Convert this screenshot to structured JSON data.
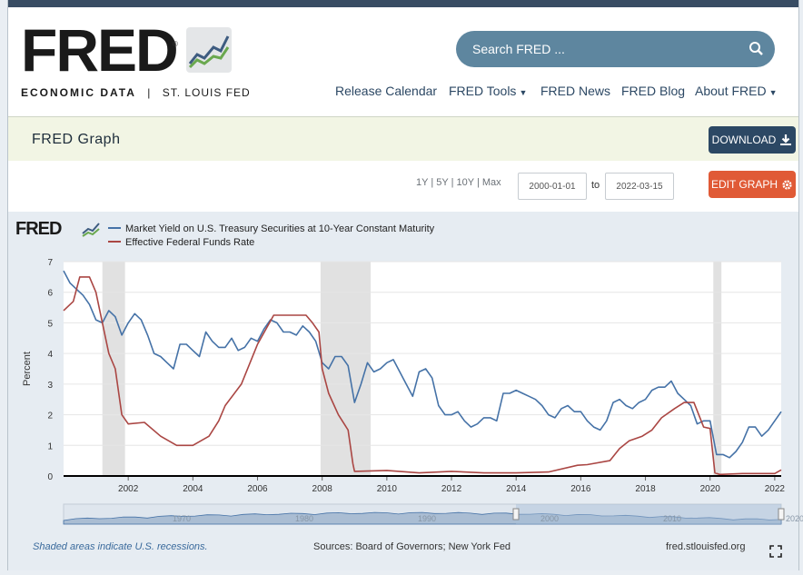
{
  "header": {
    "logo_text": "FRED",
    "logo_reg": "®",
    "tagline_bold": "ECONOMIC DATA",
    "tagline_sep": "|",
    "tagline_rest": "ST. LOUIS FED",
    "search_placeholder": "Search FRED ...",
    "nav": [
      "Release Calendar",
      "FRED Tools",
      "FRED News",
      "FRED Blog",
      "About FRED"
    ],
    "nav_chevron": "⌄"
  },
  "subheader": {
    "title": "FRED Graph",
    "download_label": "DOWNLOAD",
    "edit_label": "EDIT GRAPH"
  },
  "controls": {
    "range_1y": "1Y",
    "range_5y": "5Y",
    "range_10y": "10Y",
    "range_max": "Max",
    "sep": "|",
    "start_date": "2000-01-01",
    "to_label": "to",
    "end_date": "2022-03-15"
  },
  "footer": {
    "recession_note": "Shaded areas indicate U.S. recessions.",
    "sources": "Sources: Board of Governors; New York Fed",
    "site": "fred.stlouisfed.org"
  },
  "colors": {
    "series1": "#4572a7",
    "series2": "#aa4643",
    "recession": "#e1e1e1",
    "accent": "#2c4864"
  },
  "chart_data": {
    "type": "line",
    "title": "",
    "logo_text": "FRED",
    "ylabel": "Percent",
    "xlabel": "",
    "ylim": [
      0,
      7
    ],
    "xlim": [
      2000.0,
      2022.2
    ],
    "yticks": [
      0,
      1,
      2,
      3,
      4,
      5,
      6,
      7
    ],
    "xticks": [
      2002,
      2004,
      2006,
      2008,
      2010,
      2012,
      2014,
      2016,
      2018,
      2020,
      2022
    ],
    "navigator_ticks": [
      "1970",
      "1980",
      "1990",
      "2000",
      "2010",
      "2020"
    ],
    "recessions": [
      [
        2001.2,
        2001.9
      ],
      [
        2007.95,
        2009.5
      ],
      [
        2020.1,
        2020.35
      ]
    ],
    "series": [
      {
        "name": "Market Yield on U.S. Treasury Securities at 10-Year Constant Maturity",
        "x": [
          2000.0,
          2000.2,
          2000.4,
          2000.6,
          2000.8,
          2001.0,
          2001.2,
          2001.4,
          2001.6,
          2001.8,
          2002.0,
          2002.2,
          2002.4,
          2002.6,
          2002.8,
          2003.0,
          2003.2,
          2003.4,
          2003.6,
          2003.8,
          2004.0,
          2004.2,
          2004.4,
          2004.6,
          2004.8,
          2005.0,
          2005.2,
          2005.4,
          2005.6,
          2005.8,
          2006.0,
          2006.2,
          2006.4,
          2006.6,
          2006.8,
          2007.0,
          2007.2,
          2007.4,
          2007.6,
          2007.8,
          2008.0,
          2008.2,
          2008.4,
          2008.6,
          2008.8,
          2009.0,
          2009.2,
          2009.4,
          2009.6,
          2009.8,
          2010.0,
          2010.2,
          2010.4,
          2010.6,
          2010.8,
          2011.0,
          2011.2,
          2011.4,
          2011.6,
          2011.8,
          2012.0,
          2012.2,
          2012.4,
          2012.6,
          2012.8,
          2013.0,
          2013.2,
          2013.4,
          2013.6,
          2013.8,
          2014.0,
          2014.2,
          2014.4,
          2014.6,
          2014.8,
          2015.0,
          2015.2,
          2015.4,
          2015.6,
          2015.8,
          2016.0,
          2016.2,
          2016.4,
          2016.6,
          2016.8,
          2017.0,
          2017.2,
          2017.4,
          2017.6,
          2017.8,
          2018.0,
          2018.2,
          2018.4,
          2018.6,
          2018.8,
          2019.0,
          2019.2,
          2019.4,
          2019.6,
          2019.8,
          2020.0,
          2020.2,
          2020.4,
          2020.6,
          2020.8,
          2021.0,
          2021.2,
          2021.4,
          2021.6,
          2021.8,
          2022.0,
          2022.2
        ],
        "values": [
          6.7,
          6.3,
          6.1,
          5.9,
          5.6,
          5.1,
          5.0,
          5.4,
          5.2,
          4.6,
          5.0,
          5.3,
          5.1,
          4.6,
          4.0,
          3.9,
          3.7,
          3.5,
          4.3,
          4.3,
          4.1,
          3.9,
          4.7,
          4.4,
          4.2,
          4.2,
          4.5,
          4.1,
          4.2,
          4.5,
          4.4,
          4.8,
          5.1,
          5.0,
          4.7,
          4.7,
          4.6,
          4.9,
          4.7,
          4.4,
          3.7,
          3.5,
          3.9,
          3.9,
          3.6,
          2.4,
          3.0,
          3.7,
          3.4,
          3.5,
          3.7,
          3.8,
          3.4,
          3.0,
          2.6,
          3.4,
          3.5,
          3.2,
          2.3,
          2.0,
          2.0,
          2.1,
          1.8,
          1.6,
          1.7,
          1.9,
          1.9,
          1.8,
          2.7,
          2.7,
          2.8,
          2.7,
          2.6,
          2.5,
          2.3,
          2.0,
          1.9,
          2.2,
          2.3,
          2.1,
          2.1,
          1.8,
          1.6,
          1.5,
          1.8,
          2.4,
          2.5,
          2.3,
          2.2,
          2.4,
          2.5,
          2.8,
          2.9,
          2.9,
          3.1,
          2.7,
          2.5,
          2.3,
          1.7,
          1.8,
          1.8,
          0.7,
          0.7,
          0.6,
          0.8,
          1.1,
          1.6,
          1.6,
          1.3,
          1.5,
          1.8,
          2.1
        ]
      },
      {
        "name": "Effective Federal Funds Rate",
        "x": [
          2000.0,
          2000.3,
          2000.5,
          2000.8,
          2001.0,
          2001.2,
          2001.4,
          2001.6,
          2001.8,
          2002.0,
          2002.5,
          2003.0,
          2003.5,
          2004.0,
          2004.5,
          2004.8,
          2005.0,
          2005.5,
          2006.0,
          2006.5,
          2007.0,
          2007.5,
          2007.7,
          2007.9,
          2008.0,
          2008.2,
          2008.5,
          2008.8,
          2008.95,
          2009.0,
          2010.0,
          2011.0,
          2012.0,
          2013.0,
          2014.0,
          2015.0,
          2015.9,
          2016.2,
          2016.9,
          2017.2,
          2017.5,
          2017.9,
          2018.2,
          2018.5,
          2018.9,
          2019.2,
          2019.5,
          2019.8,
          2020.0,
          2020.15,
          2020.3,
          2021.0,
          2022.0,
          2022.2
        ],
        "values": [
          5.4,
          5.7,
          6.5,
          6.5,
          6.0,
          5.0,
          4.0,
          3.5,
          2.0,
          1.7,
          1.75,
          1.3,
          1.0,
          1.0,
          1.3,
          1.8,
          2.3,
          3.0,
          4.3,
          5.25,
          5.25,
          5.25,
          5.0,
          4.7,
          3.5,
          2.7,
          2.0,
          1.5,
          0.4,
          0.15,
          0.18,
          0.1,
          0.15,
          0.1,
          0.1,
          0.13,
          0.35,
          0.37,
          0.5,
          0.9,
          1.15,
          1.3,
          1.5,
          1.9,
          2.2,
          2.4,
          2.4,
          1.6,
          1.55,
          0.1,
          0.05,
          0.08,
          0.08,
          0.2
        ]
      }
    ]
  }
}
